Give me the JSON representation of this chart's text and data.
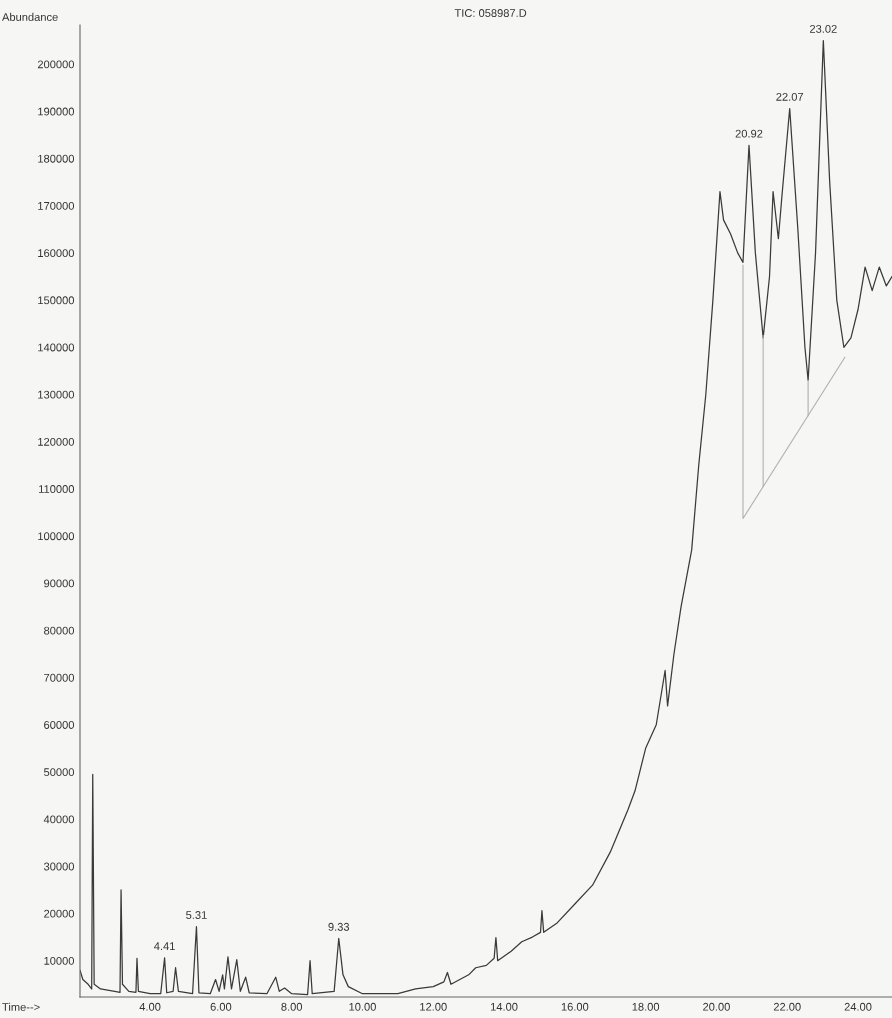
{
  "chart_data": {
    "type": "line",
    "title": "TIC: 058987.D",
    "xlabel": "Time-->",
    "ylabel": "Abundance",
    "xlim": [
      2.02,
      24.96
    ],
    "ylim": [
      2300,
      208300
    ],
    "xticks": [
      {
        "value": 4,
        "label": "4.00"
      },
      {
        "value": 6,
        "label": "6.00"
      },
      {
        "value": 8,
        "label": "8.00"
      },
      {
        "value": 10,
        "label": "10.00"
      },
      {
        "value": 12,
        "label": "12.00"
      },
      {
        "value": 14,
        "label": "14.00"
      },
      {
        "value": 16,
        "label": "16.00"
      },
      {
        "value": 18,
        "label": "18.00"
      },
      {
        "value": 20,
        "label": "20.00"
      },
      {
        "value": 22,
        "label": "22.00"
      },
      {
        "value": 24,
        "label": "24.00"
      }
    ],
    "yticks": [
      10000,
      20000,
      30000,
      40000,
      50000,
      60000,
      70000,
      80000,
      90000,
      100000,
      110000,
      120000,
      130000,
      140000,
      150000,
      160000,
      170000,
      180000,
      190000,
      200000
    ],
    "grid": false,
    "legend": false,
    "series": [
      {
        "color": "#3a3a3a",
        "x": [
          2.02,
          2.1,
          2.25,
          2.35,
          2.38,
          2.42,
          2.6,
          3.0,
          3.15,
          3.18,
          3.22,
          3.4,
          3.6,
          3.63,
          3.67,
          4.0,
          4.3,
          4.41,
          4.47,
          4.65,
          4.72,
          4.8,
          5.2,
          5.31,
          5.38,
          5.7,
          5.85,
          5.95,
          6.05,
          6.1,
          6.2,
          6.3,
          6.45,
          6.55,
          6.7,
          6.8,
          7.3,
          7.55,
          7.65,
          7.8,
          8.0,
          8.45,
          8.52,
          8.58,
          9.2,
          9.33,
          9.45,
          9.6,
          10.0,
          11.0,
          11.5,
          12.0,
          12.3,
          12.4,
          12.5,
          13.0,
          13.2,
          13.5,
          13.72,
          13.77,
          13.82,
          14.2,
          14.5,
          14.8,
          15.03,
          15.07,
          15.12,
          15.5,
          16.0,
          16.5,
          17.0,
          17.5,
          17.7,
          18.0,
          18.3,
          18.55,
          18.62,
          18.8,
          19.0,
          19.3,
          19.5,
          19.7,
          19.9,
          20.1,
          20.2,
          20.4,
          20.6,
          20.75,
          20.92,
          21.1,
          21.32,
          21.5,
          21.6,
          21.75,
          21.85,
          22.07,
          22.3,
          22.5,
          22.59,
          22.8,
          23.02,
          23.2,
          23.4,
          23.6,
          23.8,
          24.0,
          24.2,
          24.4,
          24.6,
          24.8,
          24.96
        ],
        "values": [
          8000,
          6000,
          5000,
          4000,
          49500,
          5000,
          4000,
          3500,
          3300,
          25000,
          5000,
          3500,
          3300,
          10500,
          3500,
          3000,
          3000,
          10600,
          3200,
          3500,
          8500,
          3500,
          3000,
          17200,
          3200,
          3000,
          6000,
          3500,
          7000,
          4000,
          10800,
          4000,
          10200,
          3500,
          6500,
          3200,
          3000,
          6500,
          3500,
          4200,
          3000,
          2800,
          10000,
          3000,
          3500,
          14700,
          7000,
          4500,
          3000,
          3000,
          4000,
          4500,
          5500,
          7500,
          5000,
          7000,
          8500,
          9000,
          10500,
          14900,
          10000,
          12000,
          14000,
          15000,
          16000,
          20600,
          16000,
          18000,
          22000,
          26000,
          33000,
          42000,
          46000,
          55000,
          60000,
          71500,
          64000,
          75000,
          85000,
          97000,
          115000,
          130000,
          150000,
          173000,
          167000,
          164000,
          160000,
          158000,
          182800,
          160000,
          142000,
          155000,
          173000,
          163000,
          172000,
          190600,
          165000,
          140000,
          133000,
          160000,
          205000,
          175000,
          150000,
          140000,
          142000,
          148000,
          157000,
          152000,
          157000,
          153000,
          155000
        ]
      },
      {
        "color": "#b0b0b0",
        "x": [
          20.75,
          20.75,
          23.63
        ],
        "values": [
          157400,
          103700,
          137900
        ]
      },
      {
        "color": "#b0b0b0",
        "x": [
          21.32,
          21.32
        ],
        "values": [
          142500,
          110500
        ]
      },
      {
        "color": "#b0b0b0",
        "x": [
          22.59,
          22.59
        ],
        "values": [
          133000,
          125500
        ]
      }
    ],
    "annotations": [
      {
        "text": "4.41",
        "x": 4.41,
        "y": 10600
      },
      {
        "text": "5.31",
        "x": 5.31,
        "y": 17200
      },
      {
        "text": "9.33",
        "x": 9.33,
        "y": 14700
      },
      {
        "text": "20.92",
        "x": 20.92,
        "y": 182800
      },
      {
        "text": "22.07",
        "x": 22.07,
        "y": 190600
      },
      {
        "text": "23.02",
        "x": 23.02,
        "y": 205000
      }
    ]
  }
}
